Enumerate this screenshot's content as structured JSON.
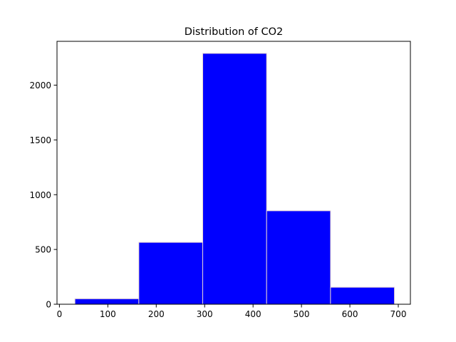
{
  "chart_data": {
    "type": "bar",
    "title": "Distribution of CO2",
    "xlabel": "",
    "ylabel": "",
    "bins": [
      {
        "x0": 32,
        "x1": 164,
        "count": 50
      },
      {
        "x0": 164,
        "x1": 296,
        "count": 565
      },
      {
        "x0": 296,
        "x1": 428,
        "count": 2290
      },
      {
        "x0": 428,
        "x1": 560,
        "count": 853
      },
      {
        "x0": 560,
        "x1": 692,
        "count": 155
      }
    ],
    "xlim": [
      -5,
      725
    ],
    "ylim": [
      0,
      2400
    ],
    "xticks": [
      0,
      100,
      200,
      300,
      400,
      500,
      600,
      700
    ],
    "yticks": [
      0,
      500,
      1000,
      1500,
      2000
    ],
    "grid": false,
    "bar_color": "#0000ff",
    "edge_color": "#e6d3d3"
  }
}
